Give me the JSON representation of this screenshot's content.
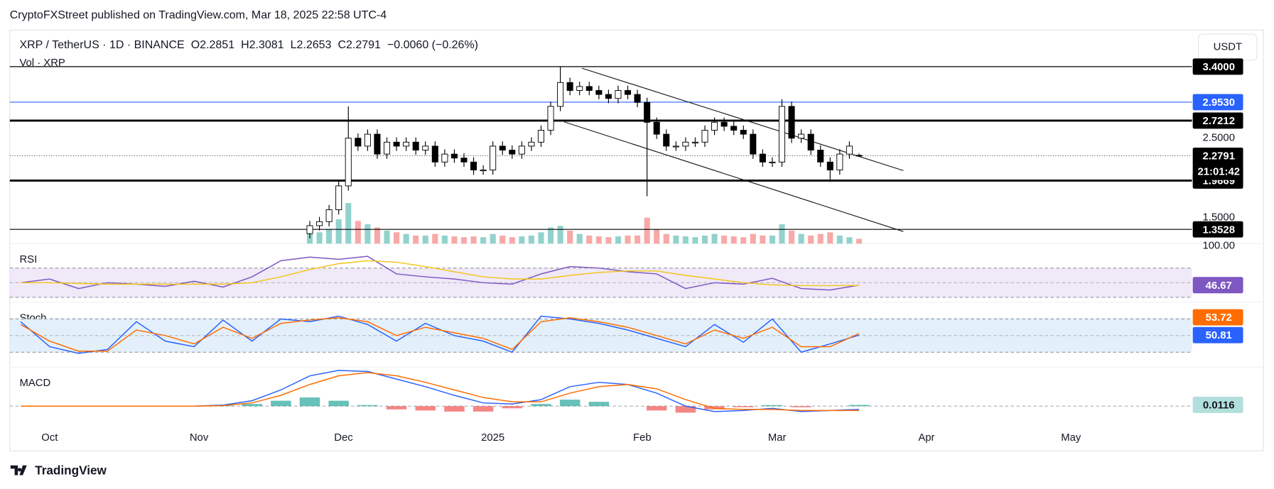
{
  "header": {
    "published": "CryptoFXStreet published on TradingView.com, Mar 18, 2025 22:58 UTC-4",
    "logo": "TradingView"
  },
  "chart_data": [
    {
      "type": "candlestick",
      "symbol": "XRP / TetherUS · 1D · BINANCE",
      "ohlc_legend": [
        "O2.2851",
        "H2.3081",
        "L2.2653",
        "C2.2791",
        "−0.0060 (−0.26%)"
      ],
      "volume_label": "Vol · XRP",
      "currency_button": "USDT",
      "xlim": [
        -8.28,
        237.1
      ],
      "xticks": [
        {
          "value": 0,
          "label": "Oct"
        },
        {
          "value": 31,
          "label": "Nov"
        },
        {
          "value": 61,
          "label": "Dec"
        },
        {
          "value": 92,
          "label": "2025"
        },
        {
          "value": 123,
          "label": "Feb"
        },
        {
          "value": 151,
          "label": "Mar"
        },
        {
          "value": 182,
          "label": "Apr"
        },
        {
          "value": 212,
          "label": "May"
        }
      ],
      "x": [
        54,
        56,
        58,
        60,
        62,
        64,
        66,
        68,
        70,
        72,
        74,
        76,
        78,
        80,
        82,
        84,
        86,
        88,
        90,
        92,
        94,
        96,
        98,
        100,
        102,
        104,
        106,
        108,
        110,
        112,
        114,
        116,
        118,
        120,
        122,
        124,
        126,
        128,
        130,
        132,
        134,
        136,
        138,
        140,
        142,
        144,
        146,
        148,
        150,
        152,
        154,
        156,
        158,
        160,
        162,
        164,
        166,
        168
      ],
      "open": [
        1.3,
        1.4,
        1.45,
        1.6,
        1.9,
        2.5,
        2.4,
        2.55,
        2.3,
        2.45,
        2.4,
        2.45,
        2.35,
        2.4,
        2.2,
        2.3,
        2.25,
        2.2,
        2.1,
        2.1,
        2.4,
        2.35,
        2.3,
        2.4,
        2.45,
        2.6,
        2.9,
        3.2,
        3.1,
        3.15,
        3.1,
        3.05,
        3.0,
        3.1,
        3.05,
        2.95,
        2.7,
        2.55,
        2.4,
        2.4,
        2.45,
        2.45,
        2.6,
        2.7,
        2.65,
        2.6,
        2.55,
        2.3,
        2.2,
        2.2,
        2.9,
        2.5,
        2.55,
        2.35,
        2.2,
        2.1,
        2.3,
        2.2851
      ],
      "high": [
        1.46,
        1.51,
        1.66,
        1.96,
        2.9,
        2.56,
        2.61,
        2.61,
        2.51,
        2.51,
        2.51,
        2.51,
        2.46,
        2.46,
        2.36,
        2.36,
        2.31,
        2.26,
        2.16,
        2.46,
        2.46,
        2.41,
        2.46,
        2.51,
        2.66,
        2.96,
        3.4,
        3.26,
        3.21,
        3.21,
        3.16,
        3.11,
        3.16,
        3.16,
        3.11,
        3.01,
        2.76,
        2.61,
        2.46,
        2.51,
        2.51,
        2.66,
        2.76,
        2.76,
        2.71,
        2.66,
        2.61,
        2.36,
        2.26,
        2.99,
        2.96,
        2.61,
        2.61,
        2.41,
        2.26,
        2.36,
        2.46,
        2.3081
      ],
      "low": [
        1.24,
        1.34,
        1.39,
        1.54,
        1.84,
        2.34,
        2.34,
        2.24,
        2.24,
        2.34,
        2.34,
        2.29,
        2.29,
        2.14,
        2.14,
        2.19,
        2.14,
        2.04,
        2.04,
        2.04,
        2.29,
        2.24,
        2.24,
        2.34,
        2.39,
        2.54,
        2.84,
        3.04,
        3.04,
        3.04,
        2.99,
        2.94,
        2.94,
        2.99,
        2.89,
        1.77,
        2.49,
        2.34,
        2.34,
        2.34,
        2.39,
        2.39,
        2.54,
        2.59,
        2.54,
        2.49,
        2.24,
        2.14,
        2.14,
        2.14,
        2.44,
        2.44,
        2.29,
        2.14,
        1.95,
        2.04,
        2.24,
        2.2653
      ],
      "close": [
        1.4,
        1.45,
        1.6,
        1.9,
        2.5,
        2.4,
        2.55,
        2.3,
        2.45,
        2.4,
        2.45,
        2.35,
        2.4,
        2.2,
        2.3,
        2.25,
        2.2,
        2.1,
        2.1,
        2.4,
        2.35,
        2.3,
        2.4,
        2.45,
        2.6,
        2.9,
        3.2,
        3.1,
        3.15,
        3.1,
        3.05,
        3.0,
        3.1,
        3.05,
        2.95,
        2.7,
        2.55,
        2.4,
        2.4,
        2.45,
        2.45,
        2.6,
        2.7,
        2.65,
        2.6,
        2.55,
        2.3,
        2.2,
        2.2,
        2.9,
        2.5,
        2.55,
        2.35,
        2.2,
        2.1,
        2.3,
        2.4,
        2.2791
      ],
      "volume": [
        600,
        700,
        900,
        1500,
        2500,
        1400,
        1200,
        1000,
        800,
        700,
        600,
        500,
        500,
        600,
        500,
        450,
        400,
        450,
        400,
        600,
        500,
        400,
        450,
        500,
        700,
        1000,
        1100,
        800,
        600,
        500,
        450,
        400,
        450,
        500,
        500,
        1600,
        900,
        600,
        500,
        450,
        400,
        500,
        600,
        500,
        450,
        400,
        600,
        500,
        500,
        1200,
        800,
        600,
        500,
        600,
        700,
        500,
        400,
        300
      ],
      "up_color": "#ffffff",
      "down_color": "#000000",
      "volume_up_color": "#92d2cc",
      "volume_down_color": "#f7a9a7",
      "ylim": [
        1.173,
        3.86
      ],
      "yticks": [
        {
          "value": 2.5,
          "label": "2.5000"
        },
        {
          "value": 1.5,
          "label": "1.5000"
        }
      ],
      "levels": [
        {
          "value": 3.4,
          "label": "3.4000",
          "color": "#000000",
          "width": 1
        },
        {
          "value": 2.953,
          "label": "2.9530",
          "color": "#2962ff",
          "width": 1
        },
        {
          "value": 2.7212,
          "label": "2.7212",
          "color": "#000000",
          "width": 2.5
        },
        {
          "value": 1.9669,
          "label": "1.9669",
          "color": "#000000",
          "width": 2.5
        },
        {
          "value": 1.3528,
          "label": "1.3528",
          "color": "#000000",
          "width": 1
        }
      ],
      "last_price": {
        "value": 2.2791,
        "label": "2.2791",
        "countdown": "21:01:42"
      },
      "trendlines": [
        {
          "x": [
            110.5,
            177.2
          ],
          "y": [
            3.38,
            2.093
          ]
        },
        {
          "x": [
            106.8,
            177.2
          ],
          "y": [
            2.705,
            1.326
          ]
        }
      ]
    },
    {
      "type": "line",
      "title": "RSI",
      "x": [
        -6,
        0,
        6,
        12,
        18,
        24,
        30,
        36,
        42,
        48,
        54,
        60,
        66,
        72,
        78,
        84,
        90,
        96,
        102,
        108,
        114,
        120,
        126,
        132,
        138,
        144,
        150,
        156,
        162,
        168
      ],
      "ylim": [
        25.6,
        103.3
      ],
      "yticks": [
        {
          "value": 100,
          "label": "100.00"
        }
      ],
      "bands": [
        30,
        70
      ],
      "midline": 50,
      "band_color": "#efe9f8",
      "series": [
        {
          "color": "#7e57c2",
          "badge": true,
          "values": [
            50,
            55,
            42,
            50,
            48,
            45,
            52,
            44,
            58,
            80,
            85,
            82,
            86,
            62,
            58,
            55,
            50,
            48,
            62,
            72,
            70,
            65,
            62,
            42,
            50,
            48,
            56,
            42,
            40,
            46.67
          ]
        },
        {
          "color": "#f5c518",
          "badge": false,
          "values": [
            50,
            50,
            49,
            48,
            48,
            48,
            48,
            48,
            50,
            58,
            68,
            76,
            80,
            78,
            72,
            65,
            58,
            55,
            55,
            60,
            64,
            66,
            66,
            60,
            55,
            50,
            47,
            46,
            46,
            46.23
          ]
        }
      ]
    },
    {
      "type": "line",
      "title": "Stoch",
      "x": [
        -6,
        0,
        6,
        12,
        18,
        24,
        30,
        36,
        42,
        48,
        54,
        60,
        66,
        72,
        78,
        84,
        90,
        96,
        102,
        108,
        114,
        120,
        126,
        132,
        138,
        144,
        150,
        156,
        162,
        168
      ],
      "ylim": [
        -4,
        110.2
      ],
      "bands": [
        20,
        80
      ],
      "midline": 50,
      "band_color": "#e3f0fb",
      "series": [
        {
          "color": "#2962ff",
          "badge": true,
          "values": [
            75,
            30,
            18,
            25,
            75,
            40,
            30,
            78,
            40,
            80,
            75,
            85,
            70,
            40,
            72,
            50,
            40,
            20,
            85,
            80,
            72,
            60,
            45,
            30,
            70,
            38,
            80,
            20,
            35,
            50.81
          ]
        },
        {
          "color": "#ff6d00",
          "badge": true,
          "values": [
            70,
            40,
            22,
            22,
            60,
            50,
            35,
            65,
            45,
            72,
            78,
            82,
            75,
            50,
            65,
            55,
            45,
            25,
            75,
            82,
            75,
            65,
            50,
            35,
            60,
            45,
            65,
            30,
            30,
            53.72
          ]
        }
      ]
    },
    {
      "type": "macd",
      "title": "MACD",
      "x": [
        -6,
        0,
        6,
        12,
        18,
        24,
        30,
        36,
        42,
        48,
        54,
        60,
        66,
        72,
        78,
        84,
        90,
        96,
        102,
        108,
        114,
        120,
        126,
        132,
        138,
        144,
        150,
        156,
        162,
        168
      ],
      "ylim": [
        -0.15,
        0.36
      ],
      "midline": 0,
      "histogram": {
        "up_color": "#26a69a",
        "down_color": "#ef5350",
        "badge_color": "#b2dfdb",
        "values": [
          0,
          0,
          0,
          0,
          0,
          0,
          0,
          0.005,
          0.02,
          0.05,
          0.08,
          0.05,
          0.01,
          -0.03,
          -0.04,
          -0.05,
          -0.05,
          -0.02,
          0.02,
          0.06,
          0.04,
          0,
          -0.04,
          -0.06,
          -0.03,
          -0.01,
          0.01,
          -0.01,
          0,
          0.0116
        ]
      },
      "series": [
        {
          "color": "#2962ff",
          "badge": false,
          "values": [
            0,
            0,
            0,
            0,
            0,
            0,
            0,
            0.01,
            0.05,
            0.15,
            0.28,
            0.33,
            0.32,
            0.25,
            0.18,
            0.1,
            0.03,
            0.02,
            0.06,
            0.18,
            0.22,
            0.2,
            0.12,
            0,
            -0.05,
            -0.04,
            -0.02,
            -0.05,
            -0.04,
            -0.03
          ]
        },
        {
          "color": "#ff6d00",
          "badge": false,
          "values": [
            0,
            0,
            0,
            0,
            0,
            0,
            0,
            0.005,
            0.03,
            0.1,
            0.2,
            0.28,
            0.31,
            0.28,
            0.22,
            0.15,
            0.08,
            0.04,
            0.04,
            0.12,
            0.18,
            0.2,
            0.16,
            0.06,
            -0.02,
            -0.03,
            -0.03,
            -0.04,
            -0.04,
            -0.04
          ]
        }
      ]
    }
  ]
}
